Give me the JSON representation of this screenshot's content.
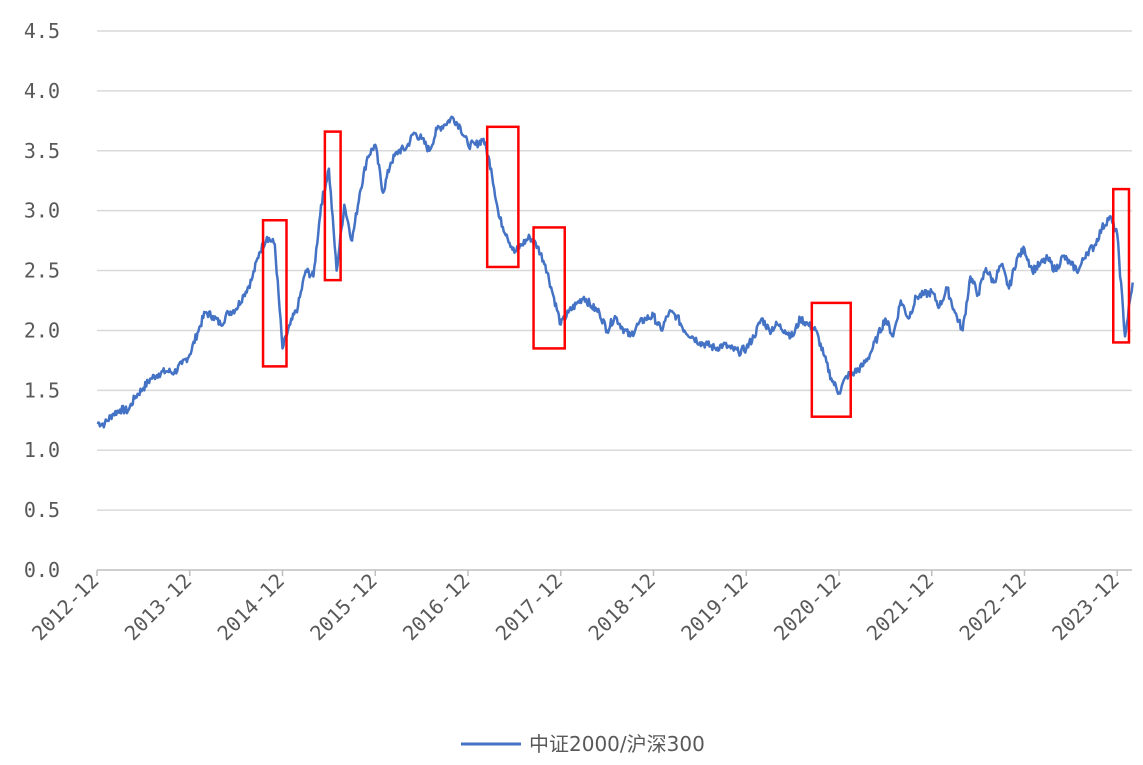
{
  "chart_data": {
    "type": "line",
    "title": "",
    "xlabel": "",
    "ylabel": "",
    "x_ticks": [
      "2012-12",
      "2013-12",
      "2014-12",
      "2015-12",
      "2016-12",
      "2017-12",
      "2018-12",
      "2019-12",
      "2020-12",
      "2021-12",
      "2022-12",
      "2023-12"
    ],
    "y_ticks": [
      "0.0",
      "0.5",
      "1.0",
      "1.5",
      "2.0",
      "2.5",
      "3.0",
      "3.5",
      "4.0",
      "4.5"
    ],
    "ylim": [
      0,
      4.5
    ],
    "grid": "horizontal",
    "legend_position": "bottom-center",
    "series": [
      {
        "name": "中证2000/沪深300",
        "color": "#4472C4",
        "points": [
          [
            "2012-12",
            1.23
          ],
          [
            "2013-01",
            1.22
          ],
          [
            "2013-02",
            1.3
          ],
          [
            "2013-03",
            1.34
          ],
          [
            "2013-04",
            1.33
          ],
          [
            "2013-05",
            1.45
          ],
          [
            "2013-06",
            1.52
          ],
          [
            "2013-07",
            1.6
          ],
          [
            "2013-08",
            1.64
          ],
          [
            "2013-09",
            1.66
          ],
          [
            "2013-10",
            1.65
          ],
          [
            "2013-11",
            1.72
          ],
          [
            "2013-12",
            1.8
          ],
          [
            "2014-01",
            1.98
          ],
          [
            "2014-02",
            2.15
          ],
          [
            "2014-03",
            2.12
          ],
          [
            "2014-04",
            2.05
          ],
          [
            "2014-05",
            2.15
          ],
          [
            "2014-06",
            2.18
          ],
          [
            "2014-07",
            2.3
          ],
          [
            "2014-08",
            2.42
          ],
          [
            "2014-09",
            2.65
          ],
          [
            "2014-10",
            2.78
          ],
          [
            "2014-11",
            2.72
          ],
          [
            "2014-12",
            1.85
          ],
          [
            "2015-01",
            2.05
          ],
          [
            "2015-02",
            2.2
          ],
          [
            "2015-03",
            2.5
          ],
          [
            "2015-04",
            2.45
          ],
          [
            "2015-05",
            3.05
          ],
          [
            "2015-06",
            3.35
          ],
          [
            "2015-07",
            2.5
          ],
          [
            "2015-08",
            3.05
          ],
          [
            "2015-09",
            2.75
          ],
          [
            "2015-10",
            3.15
          ],
          [
            "2015-11",
            3.45
          ],
          [
            "2015-12",
            3.55
          ],
          [
            "2016-01",
            3.15
          ],
          [
            "2016-02",
            3.4
          ],
          [
            "2016-03",
            3.5
          ],
          [
            "2016-04",
            3.52
          ],
          [
            "2016-05",
            3.65
          ],
          [
            "2016-06",
            3.6
          ],
          [
            "2016-07",
            3.5
          ],
          [
            "2016-08",
            3.68
          ],
          [
            "2016-09",
            3.72
          ],
          [
            "2016-10",
            3.78
          ],
          [
            "2016-11",
            3.7
          ],
          [
            "2016-12",
            3.55
          ],
          [
            "2017-01",
            3.55
          ],
          [
            "2017-02",
            3.6
          ],
          [
            "2017-03",
            3.35
          ],
          [
            "2017-04",
            2.95
          ],
          [
            "2017-05",
            2.8
          ],
          [
            "2017-06",
            2.65
          ],
          [
            "2017-07",
            2.72
          ],
          [
            "2017-08",
            2.78
          ],
          [
            "2017-09",
            2.7
          ],
          [
            "2017-10",
            2.55
          ],
          [
            "2017-11",
            2.3
          ],
          [
            "2017-12",
            2.05
          ],
          [
            "2018-01",
            2.15
          ],
          [
            "2018-02",
            2.22
          ],
          [
            "2018-03",
            2.28
          ],
          [
            "2018-04",
            2.2
          ],
          [
            "2018-05",
            2.15
          ],
          [
            "2018-06",
            2.0
          ],
          [
            "2018-07",
            2.12
          ],
          [
            "2018-08",
            2.02
          ],
          [
            "2018-09",
            1.95
          ],
          [
            "2018-10",
            2.05
          ],
          [
            "2018-11",
            2.1
          ],
          [
            "2018-12",
            2.12
          ],
          [
            "2019-01",
            2.0
          ],
          [
            "2019-02",
            2.15
          ],
          [
            "2019-03",
            2.12
          ],
          [
            "2019-04",
            2.0
          ],
          [
            "2019-05",
            1.95
          ],
          [
            "2019-06",
            1.9
          ],
          [
            "2019-07",
            1.88
          ],
          [
            "2019-08",
            1.85
          ],
          [
            "2019-09",
            1.88
          ],
          [
            "2019-10",
            1.85
          ],
          [
            "2019-11",
            1.82
          ],
          [
            "2019-12",
            1.85
          ],
          [
            "2020-01",
            1.95
          ],
          [
            "2020-02",
            2.1
          ],
          [
            "2020-03",
            2.0
          ],
          [
            "2020-04",
            2.05
          ],
          [
            "2020-05",
            2.0
          ],
          [
            "2020-06",
            1.95
          ],
          [
            "2020-07",
            2.1
          ],
          [
            "2020-08",
            2.05
          ],
          [
            "2020-09",
            2.0
          ],
          [
            "2020-10",
            1.8
          ],
          [
            "2020-11",
            1.6
          ],
          [
            "2020-12",
            1.48
          ],
          [
            "2021-01",
            1.62
          ],
          [
            "2021-02",
            1.65
          ],
          [
            "2021-03",
            1.7
          ],
          [
            "2021-04",
            1.8
          ],
          [
            "2021-05",
            1.95
          ],
          [
            "2021-06",
            2.1
          ],
          [
            "2021-07",
            1.95
          ],
          [
            "2021-08",
            2.25
          ],
          [
            "2021-09",
            2.1
          ],
          [
            "2021-10",
            2.28
          ],
          [
            "2021-11",
            2.3
          ],
          [
            "2021-12",
            2.32
          ],
          [
            "2022-01",
            2.2
          ],
          [
            "2022-02",
            2.35
          ],
          [
            "2022-03",
            2.15
          ],
          [
            "2022-04",
            2.0
          ],
          [
            "2022-05",
            2.45
          ],
          [
            "2022-06",
            2.3
          ],
          [
            "2022-07",
            2.52
          ],
          [
            "2022-08",
            2.4
          ],
          [
            "2022-09",
            2.55
          ],
          [
            "2022-10",
            2.35
          ],
          [
            "2022-11",
            2.6
          ],
          [
            "2022-12",
            2.68
          ],
          [
            "2023-01",
            2.5
          ],
          [
            "2023-02",
            2.55
          ],
          [
            "2023-03",
            2.6
          ],
          [
            "2023-04",
            2.5
          ],
          [
            "2023-05",
            2.62
          ],
          [
            "2023-06",
            2.55
          ],
          [
            "2023-07",
            2.5
          ],
          [
            "2023-08",
            2.65
          ],
          [
            "2023-09",
            2.7
          ],
          [
            "2023-10",
            2.85
          ],
          [
            "2023-11",
            2.95
          ],
          [
            "2023-12",
            2.8
          ],
          [
            "2024-01",
            1.95
          ],
          [
            "2024-02",
            2.4
          ]
        ]
      }
    ],
    "highlight_periods": [
      {
        "x_start": "2014-10",
        "x_end": "2014-12",
        "y_low": 1.7,
        "y_high": 2.92,
        "color": "#FF0000"
      },
      {
        "x_start": "2015-06",
        "x_end": "2015-07",
        "y_low": 2.42,
        "y_high": 3.66,
        "color": "#FF0000"
      },
      {
        "x_start": "2017-03",
        "x_end": "2017-06",
        "y_low": 2.53,
        "y_high": 3.7,
        "color": "#FF0000"
      },
      {
        "x_start": "2017-09",
        "x_end": "2017-12",
        "y_low": 1.85,
        "y_high": 2.86,
        "color": "#FF0000"
      },
      {
        "x_start": "2020-09",
        "x_end": "2021-01",
        "y_low": 1.28,
        "y_high": 2.23,
        "color": "#FF0000"
      },
      {
        "x_start": "2023-12",
        "x_end": "2024-01",
        "y_low": 1.9,
        "y_high": 3.18,
        "color": "#FF0000"
      }
    ]
  }
}
